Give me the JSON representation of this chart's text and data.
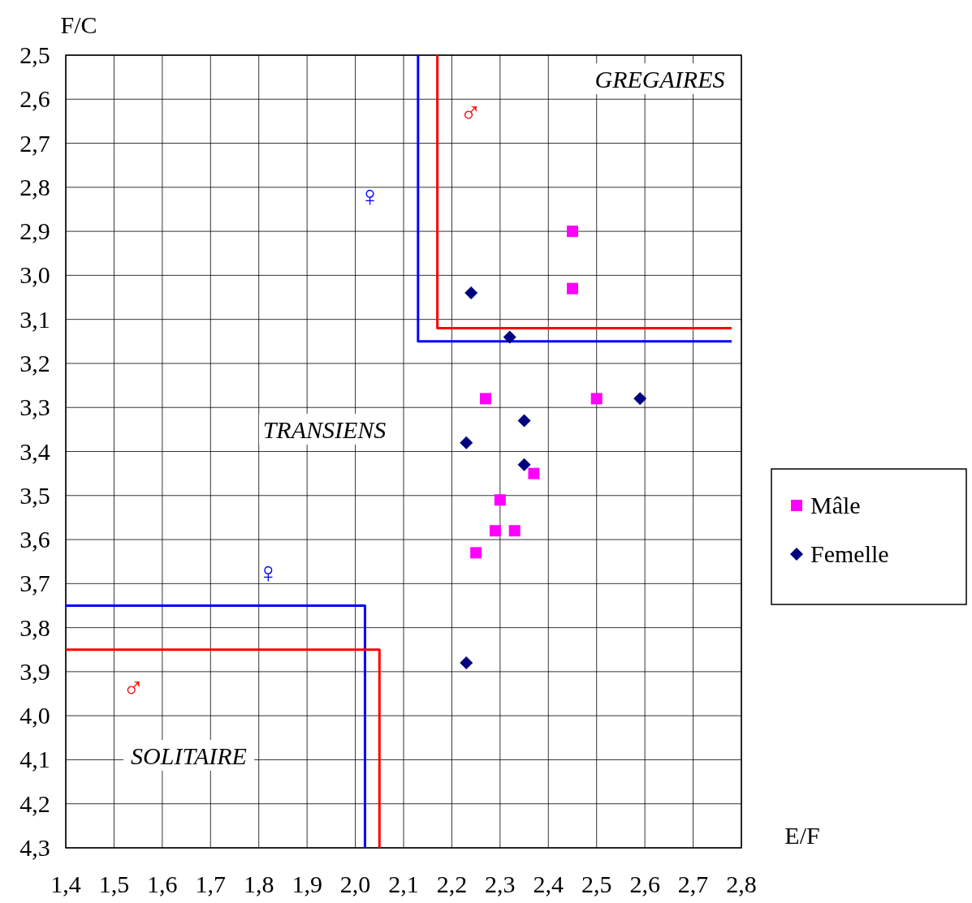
{
  "chart_data": {
    "type": "scatter",
    "xlabel": "E/F",
    "ylabel": "F/C",
    "xlim": [
      1.4,
      2.8
    ],
    "ylim": [
      4.3,
      2.5
    ],
    "xticks": [
      {
        "value": 1.4,
        "label": "1,4"
      },
      {
        "value": 1.5,
        "label": "1,5"
      },
      {
        "value": 1.6,
        "label": "1,6"
      },
      {
        "value": 1.7,
        "label": "1,7"
      },
      {
        "value": 1.8,
        "label": "1,8"
      },
      {
        "value": 1.9,
        "label": "1,9"
      },
      {
        "value": 2.0,
        "label": "2,0"
      },
      {
        "value": 2.1,
        "label": "2,1"
      },
      {
        "value": 2.2,
        "label": "2,2"
      },
      {
        "value": 2.3,
        "label": "2,3"
      },
      {
        "value": 2.4,
        "label": "2,4"
      },
      {
        "value": 2.5,
        "label": "2,5"
      },
      {
        "value": 2.6,
        "label": "2,6"
      },
      {
        "value": 2.7,
        "label": "2,7"
      },
      {
        "value": 2.8,
        "label": "2,8"
      }
    ],
    "yticks": [
      {
        "value": 2.5,
        "label": "2,5"
      },
      {
        "value": 2.6,
        "label": "2,6"
      },
      {
        "value": 2.7,
        "label": "2,7"
      },
      {
        "value": 2.8,
        "label": "2,8"
      },
      {
        "value": 2.9,
        "label": "2,9"
      },
      {
        "value": 3.0,
        "label": "3,0"
      },
      {
        "value": 3.1,
        "label": "3,1"
      },
      {
        "value": 3.2,
        "label": "3,2"
      },
      {
        "value": 3.3,
        "label": "3,3"
      },
      {
        "value": 3.4,
        "label": "3,4"
      },
      {
        "value": 3.5,
        "label": "3,5"
      },
      {
        "value": 3.6,
        "label": "3,6"
      },
      {
        "value": 3.7,
        "label": "3,7"
      },
      {
        "value": 3.8,
        "label": "3,8"
      },
      {
        "value": 3.9,
        "label": "3,9"
      },
      {
        "value": 4.0,
        "label": "4,0"
      },
      {
        "value": 4.1,
        "label": "4,1"
      },
      {
        "value": 4.2,
        "label": "4,2"
      },
      {
        "value": 4.3,
        "label": "4,3"
      }
    ],
    "grid": true,
    "legend": "right",
    "annotations": [
      "GREGAIRES",
      "TRANSIENS",
      "SOLITAIRE"
    ],
    "series": [
      {
        "type": "line",
        "name": "♂",
        "color": "#ff0000",
        "x": [
          2.17,
          2.17,
          2.78
        ],
        "values": [
          2.5,
          3.12,
          3.12
        ]
      },
      {
        "type": "line",
        "name": "♀",
        "color": "#0000ff",
        "x": [
          2.13,
          2.13,
          2.78
        ],
        "values": [
          2.5,
          3.15,
          3.15
        ]
      },
      {
        "type": "line",
        "name": "♀",
        "color": "#0000ff",
        "x": [
          1.4,
          2.02,
          2.02
        ],
        "values": [
          3.75,
          3.75,
          4.3
        ]
      },
      {
        "type": "line",
        "name": "♂",
        "color": "#ff0000",
        "x": [
          1.4,
          2.05,
          2.05
        ],
        "values": [
          3.85,
          3.85,
          4.3
        ]
      },
      {
        "type": "scatter",
        "name": "Mâle",
        "color": "#ff00ff",
        "marker": "square",
        "x": [
          2.45,
          2.45,
          2.27,
          2.5,
          2.37,
          2.3,
          2.29,
          2.33,
          2.25
        ],
        "values": [
          2.9,
          3.03,
          3.28,
          3.28,
          3.45,
          3.51,
          3.58,
          3.58,
          3.63
        ]
      },
      {
        "type": "scatter",
        "name": "Femelle",
        "color": "#000080",
        "marker": "diamond",
        "x": [
          2.24,
          2.32,
          2.59,
          2.35,
          2.23,
          2.35,
          2.23
        ],
        "values": [
          3.04,
          3.14,
          3.28,
          3.33,
          3.38,
          3.43,
          3.88
        ]
      }
    ]
  }
}
